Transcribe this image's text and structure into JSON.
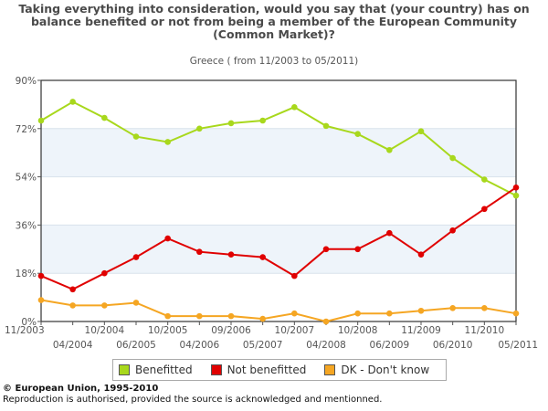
{
  "chart_data": {
    "type": "line",
    "title": "Taking everything into consideration, would you say that (your country) has on balance benefited or not from being a member of the European Community (Common Market)?",
    "subtitle": "Greece ( from 11/2003 to 05/2011)",
    "x": [
      "11/2003",
      "04/2004",
      "10/2004",
      "06/2005",
      "10/2005",
      "04/2006",
      "09/2006",
      "05/2007",
      "10/2007",
      "04/2008",
      "10/2008",
      "06/2009",
      "11/2009",
      "06/2010",
      "11/2010",
      "05/2011"
    ],
    "x_labels_top": [
      "11/2003",
      "10/2004",
      "10/2005",
      "09/2006",
      "10/2007",
      "10/2008",
      "11/2009",
      "11/2010"
    ],
    "x_labels_bottom": [
      "04/2004",
      "06/2005",
      "04/2006",
      "05/2007",
      "04/2008",
      "06/2009",
      "06/2010",
      "05/2011"
    ],
    "ylim": [
      0,
      90
    ],
    "yticks": [
      "0%",
      "18%",
      "36%",
      "54%",
      "72%",
      "90%"
    ],
    "grid": "horizontal bands",
    "legend": "bottom",
    "series": [
      {
        "name": "Benefitted",
        "color": "#a8d81c",
        "values": [
          75,
          82,
          76,
          69,
          67,
          72,
          74,
          75,
          80,
          73,
          70,
          64,
          71,
          61,
          53,
          47
        ]
      },
      {
        "name": "Not benefitted",
        "color": "#e00000",
        "values": [
          17,
          12,
          18,
          24,
          31,
          26,
          25,
          24,
          17,
          27,
          27,
          33,
          25,
          34,
          42,
          50
        ]
      },
      {
        "name": "DK - Don't know",
        "color": "#f5a623",
        "values": [
          8,
          6,
          6,
          7,
          2,
          2,
          2,
          1,
          3,
          0,
          3,
          3,
          4,
          5,
          5,
          3
        ]
      }
    ]
  },
  "footer": {
    "copyright": "© European Union, 1995-2010",
    "note": "Reproduction is authorised, provided the source is acknowledged and mentionned."
  }
}
